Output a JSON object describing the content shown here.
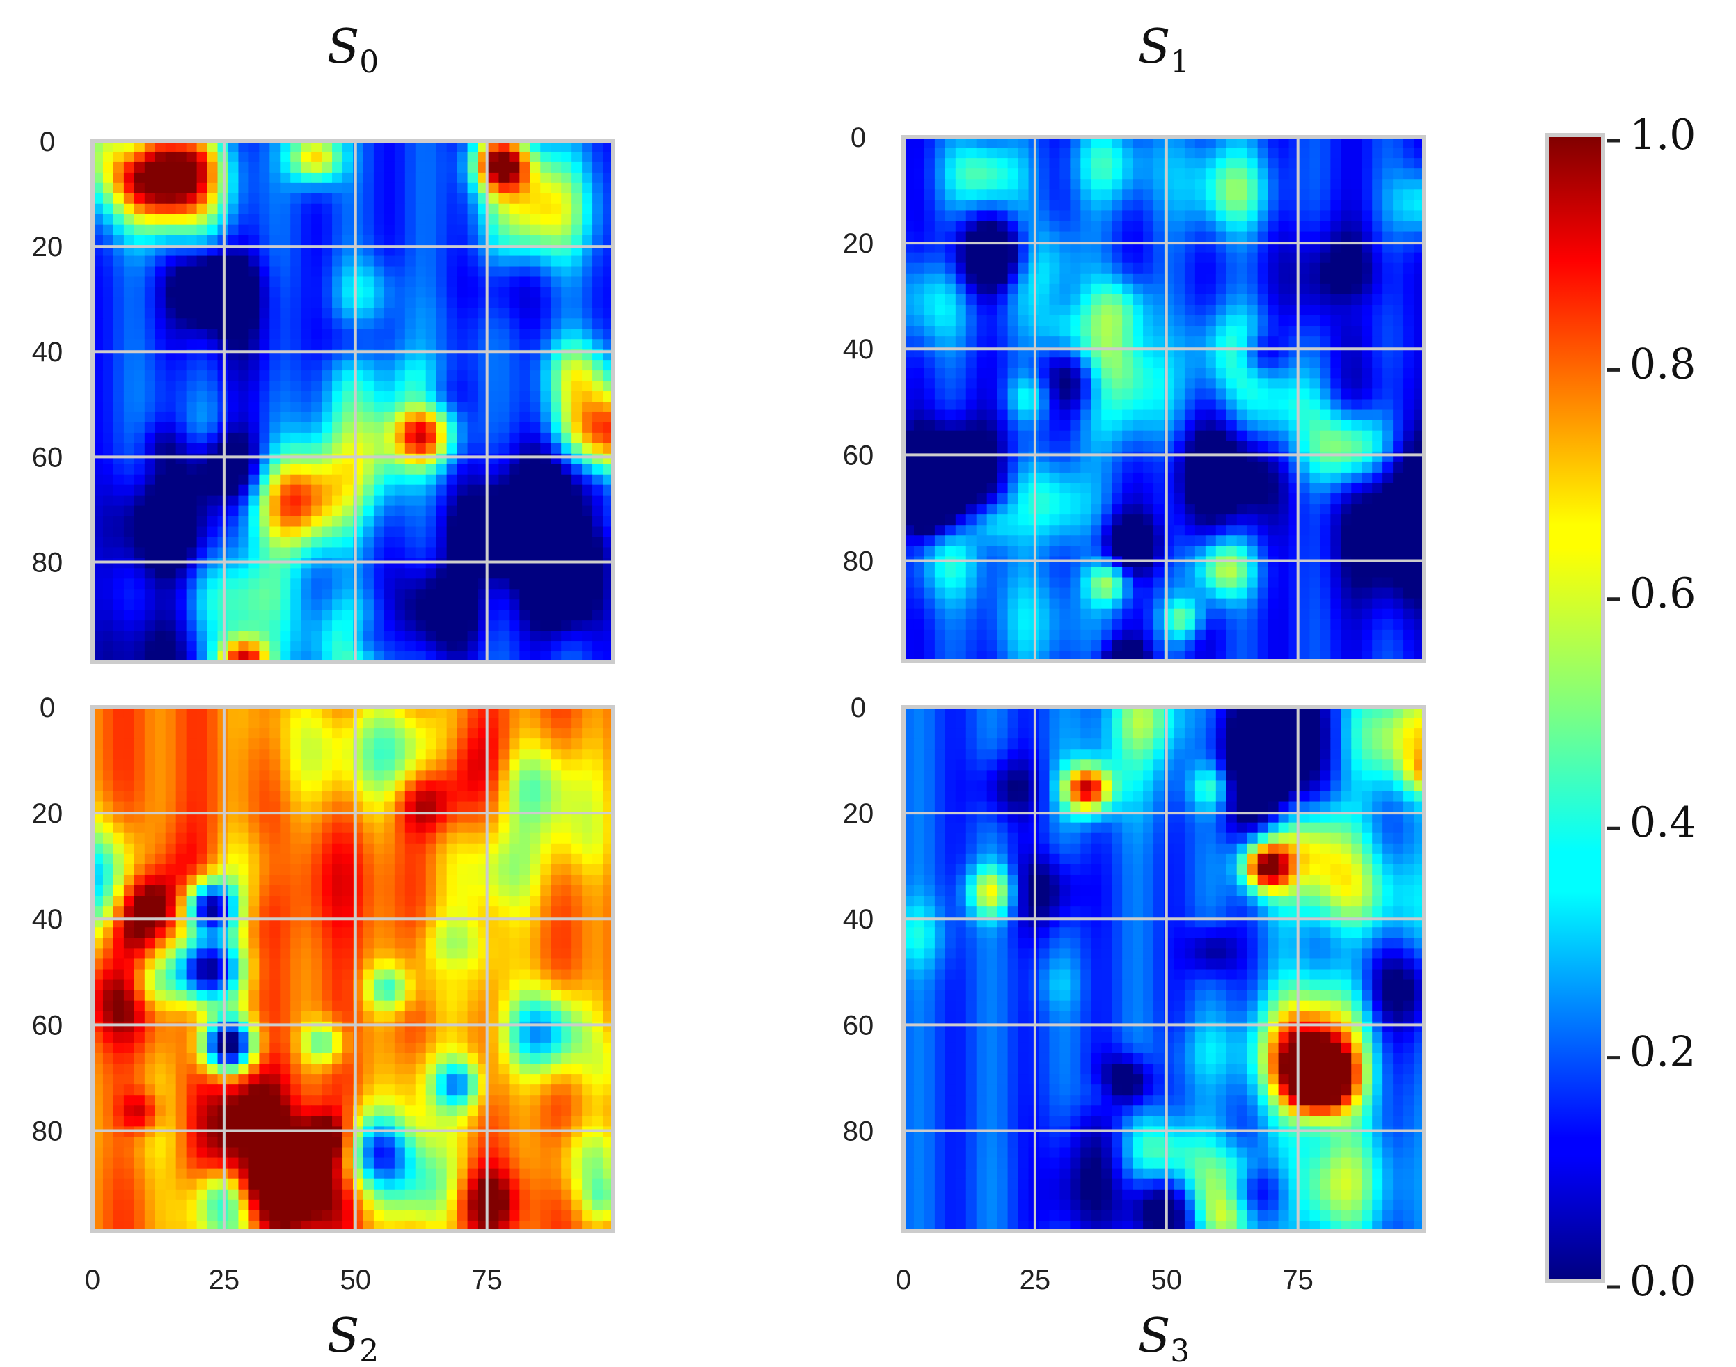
{
  "chart_data": {
    "type": "heatmap",
    "colormap": "jet",
    "value_range": [
      0.0,
      1.0
    ],
    "grid": true,
    "panels": [
      {
        "id": "S0",
        "title_main": "S",
        "title_sub": "0",
        "title_position": "top",
        "xlim": [
          0,
          99
        ],
        "ylim": [
          0,
          99
        ],
        "seed": 11,
        "base": 0.18
      },
      {
        "id": "S1",
        "title_main": "S",
        "title_sub": "1",
        "title_position": "top",
        "xlim": [
          0,
          99
        ],
        "ylim": [
          0,
          99
        ],
        "seed": 23,
        "base": 0.16
      },
      {
        "id": "S2",
        "title_main": "S",
        "title_sub": "2",
        "title_position": "bottom",
        "xlim": [
          0,
          99
        ],
        "ylim": [
          0,
          99
        ],
        "seed": 37,
        "base": 0.78
      },
      {
        "id": "S3",
        "title_main": "S",
        "title_sub": "3",
        "title_position": "bottom",
        "xlim": [
          0,
          99
        ],
        "ylim": [
          0,
          99
        ],
        "seed": 51,
        "base": 0.2
      }
    ],
    "yticks": [
      0,
      20,
      40,
      60,
      80
    ],
    "ytick_labels": [
      "0",
      "20",
      "40",
      "60",
      "80"
    ],
    "xticks": [
      0,
      25,
      50,
      75
    ],
    "xtick_labels": [
      "0",
      "25",
      "50",
      "75"
    ],
    "colorbar": {
      "ticks": [
        0.0,
        0.2,
        0.4,
        0.6,
        0.8,
        1.0
      ],
      "tick_labels": [
        "0.0",
        "0.2",
        "0.4",
        "0.6",
        "0.8",
        "1.0"
      ]
    }
  }
}
